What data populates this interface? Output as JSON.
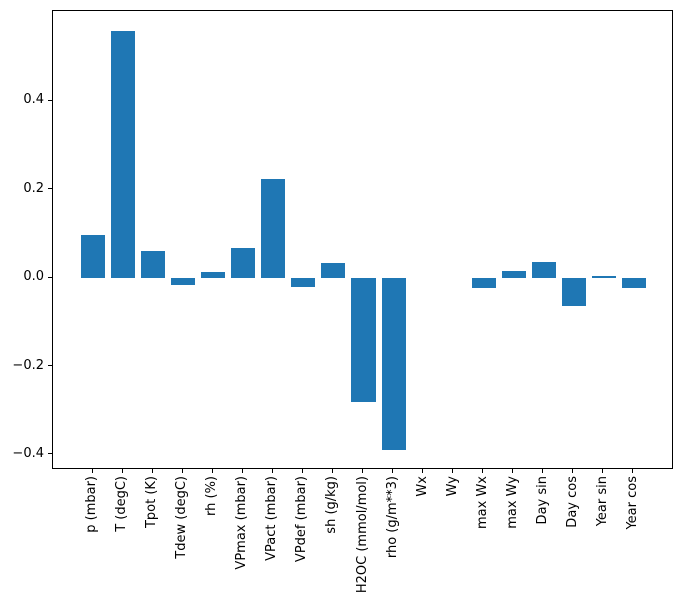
{
  "chart_data": {
    "type": "bar",
    "title": "",
    "xlabel": "",
    "ylabel": "",
    "categories": [
      "p (mbar)",
      "T (degC)",
      "Tpot (K)",
      "Tdew (degC)",
      "rh (%)",
      "VPmax (mbar)",
      "VPact (mbar)",
      "VPdef (mbar)",
      "sh (g/kg)",
      "H2OC (mmol/mol)",
      "rho (g/m**3)",
      "Wx",
      "Wy",
      "max Wx",
      "max Wy",
      "Day sin",
      "Day cos",
      "Year sin",
      "Year cos"
    ],
    "values": [
      0.098,
      0.558,
      0.062,
      -0.016,
      0.013,
      0.068,
      0.223,
      -0.02,
      0.034,
      -0.281,
      -0.389,
      0.0,
      0.0,
      -0.023,
      0.016,
      0.036,
      -0.063,
      0.004,
      -0.023
    ],
    "yticks": [
      0.4,
      0.2,
      0.0,
      -0.2,
      -0.4
    ],
    "ytick_labels": [
      "0.4",
      "0.2",
      "0.0",
      "−0.2",
      "−0.4"
    ],
    "ylim": [
      -0.434,
      0.604
    ],
    "xlim": [
      -1.34,
      19.34
    ],
    "bar_width_units": 0.8,
    "bar_color": "#1f77b4",
    "axis_color": "#000000",
    "background_color": "#ffffff",
    "grid": false,
    "legend": null,
    "x_label_rotation_deg": 90
  }
}
